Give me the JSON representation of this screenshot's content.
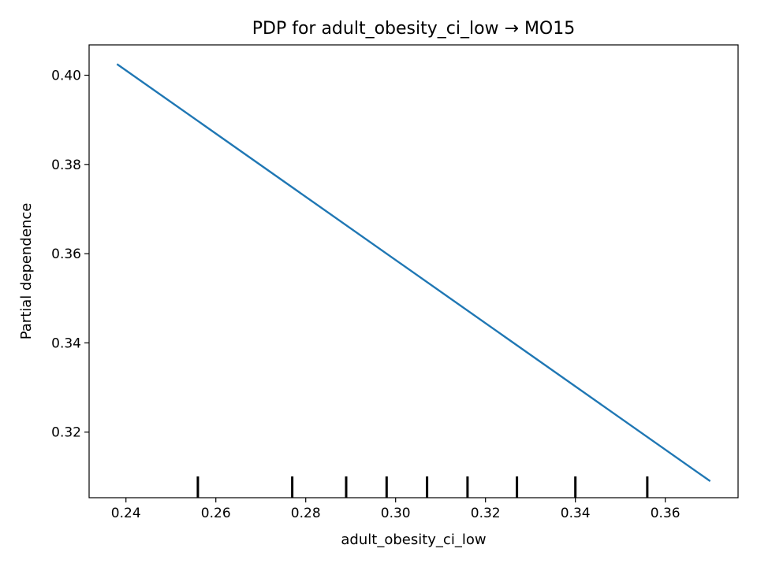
{
  "chart_data": {
    "type": "line",
    "title": "PDP for adult_obesity_ci_low → MO15",
    "xlabel": "adult_obesity_ci_low",
    "ylabel": "Partial dependence",
    "xlim": [
      0.2318,
      0.3762
    ],
    "ylim": [
      0.3053,
      0.4068
    ],
    "x_ticks": [
      0.24,
      0.26,
      0.28,
      0.3,
      0.32,
      0.34,
      0.36
    ],
    "x_tick_labels": [
      "0.24",
      "0.26",
      "0.28",
      "0.30",
      "0.32",
      "0.34",
      "0.36"
    ],
    "y_ticks": [
      0.32,
      0.34,
      0.36,
      0.38,
      0.4
    ],
    "y_tick_labels": [
      "0.32",
      "0.34",
      "0.36",
      "0.38",
      "0.40"
    ],
    "grid": false,
    "series": [
      {
        "color": "#1f77b4",
        "x": [
          0.238,
          0.37
        ],
        "y": [
          0.4025,
          0.309
        ]
      }
    ],
    "rug_x": [
      0.256,
      0.277,
      0.289,
      0.298,
      0.307,
      0.316,
      0.327,
      0.34,
      0.356
    ],
    "rug_color": "#000000"
  }
}
